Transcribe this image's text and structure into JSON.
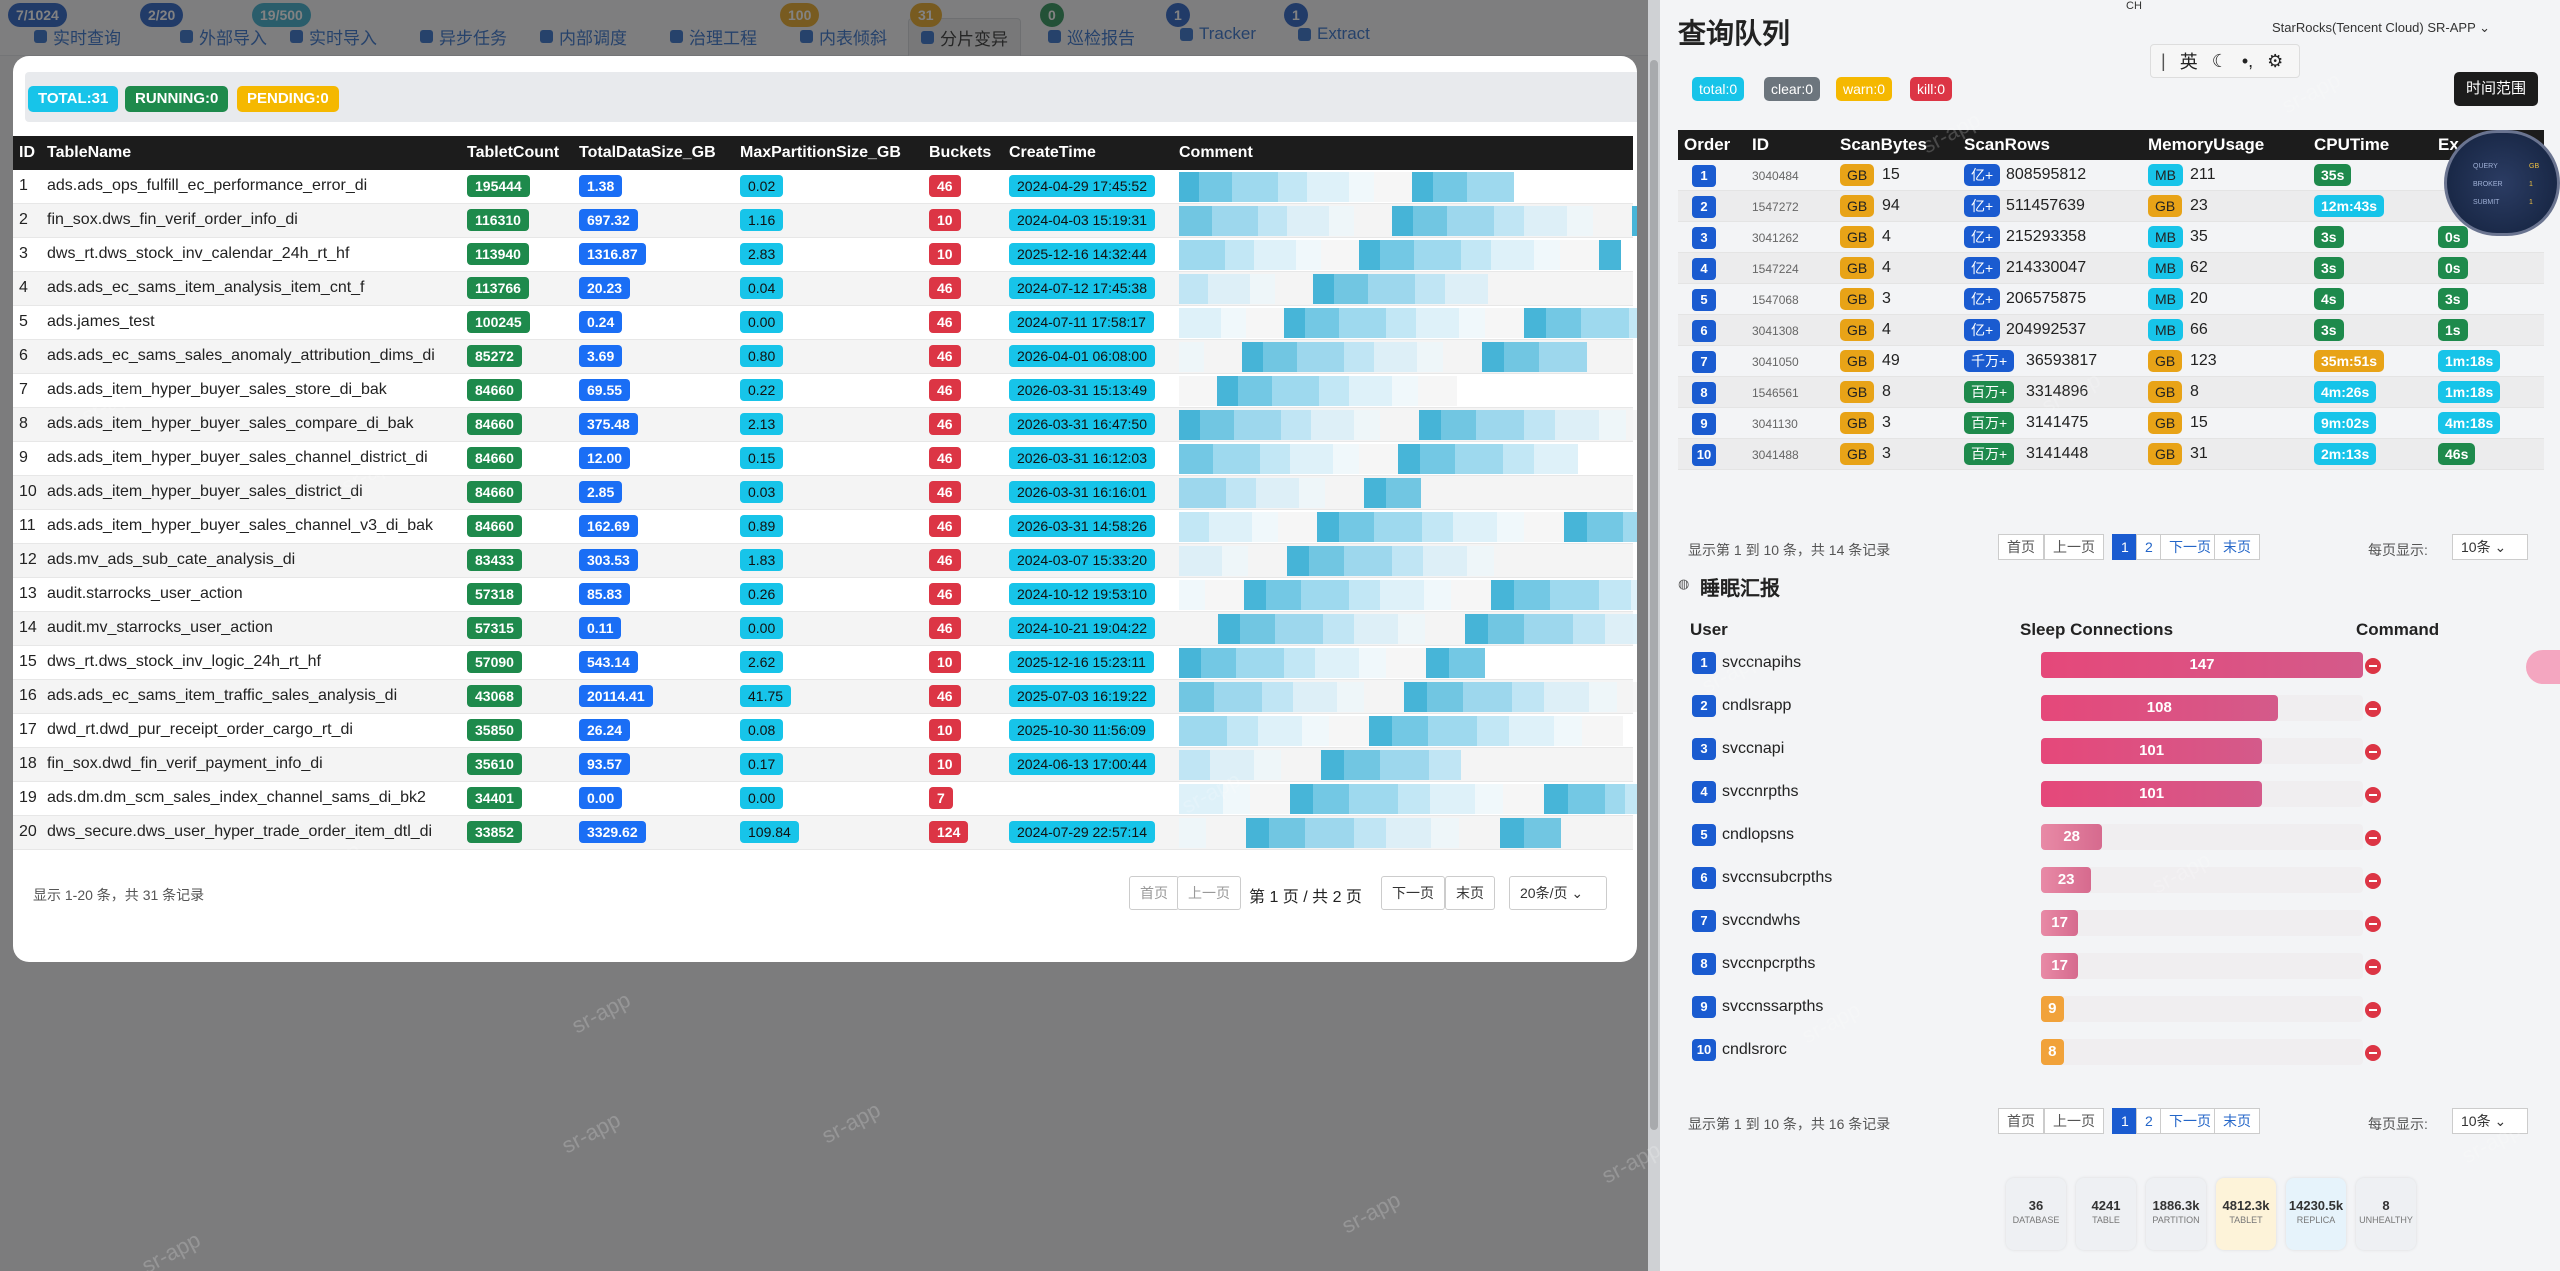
{
  "nav": {
    "items": [
      {
        "label": "实时查询",
        "badge": "7/1024",
        "badge_color": "#1a56c2"
      },
      {
        "label": "外部导入",
        "badge": "2/20",
        "badge_color": "#1a56c2"
      },
      {
        "label": "实时导入",
        "badge": "19/500",
        "badge_color": "#2fa6c9"
      },
      {
        "label": "异步任务",
        "badge": "",
        "badge_color": ""
      },
      {
        "label": "内部调度",
        "badge": "",
        "badge_color": ""
      },
      {
        "label": "治理工程",
        "badge": "",
        "badge_color": ""
      },
      {
        "label": "内表倾斜",
        "badge": "100",
        "badge_color": "#e8a317"
      },
      {
        "label": "分片变异",
        "badge": "31",
        "badge_color": "#e8a317"
      },
      {
        "label": "巡检报告",
        "badge": "0",
        "badge_color": "#1e8a4c"
      },
      {
        "label": "Tracker",
        "badge": "1",
        "badge_color": "#1a56c2"
      },
      {
        "label": "Extract",
        "badge": "1",
        "badge_color": "#1a56c2"
      }
    ]
  },
  "watermark": "sr-app",
  "modal": {
    "summary": {
      "total": "TOTAL:31",
      "running": "RUNNING:0",
      "pending": "PENDING:0"
    },
    "columns": [
      "ID",
      "TableName",
      "TabletCount",
      "TotalDataSize_GB",
      "MaxPartitionSize_GB",
      "Buckets",
      "CreateTime",
      "Comment"
    ],
    "rows": [
      {
        "id": "1",
        "name": "ads.ads_ops_fulfill_ec_performance_error_di",
        "tablets": "195444",
        "size": "1.38",
        "maxp": "0.02",
        "buckets": "46",
        "ctime": "2024-04-29 17:45:52"
      },
      {
        "id": "2",
        "name": "fin_sox.dws_fin_verif_order_info_di",
        "tablets": "116310",
        "size": "697.32",
        "maxp": "1.16",
        "buckets": "10",
        "ctime": "2024-04-03 15:19:31"
      },
      {
        "id": "3",
        "name": "dws_rt.dws_stock_inv_calendar_24h_rt_hf",
        "tablets": "113940",
        "size": "1316.87",
        "maxp": "2.83",
        "buckets": "10",
        "ctime": "2025-12-16 14:32:44"
      },
      {
        "id": "4",
        "name": "ads.ads_ec_sams_item_analysis_item_cnt_f",
        "tablets": "113766",
        "size": "20.23",
        "maxp": "0.04",
        "buckets": "46",
        "ctime": "2024-07-12 17:45:38"
      },
      {
        "id": "5",
        "name": "ads.james_test",
        "tablets": "100245",
        "size": "0.24",
        "maxp": "0.00",
        "buckets": "46",
        "ctime": "2024-07-11 17:58:17"
      },
      {
        "id": "6",
        "name": "ads.ads_ec_sams_sales_anomaly_attribution_dims_di",
        "tablets": "85272",
        "size": "3.69",
        "maxp": "0.80",
        "buckets": "46",
        "ctime": "2026-04-01 06:08:00"
      },
      {
        "id": "7",
        "name": "ads.ads_item_hyper_buyer_sales_store_di_bak",
        "tablets": "84660",
        "size": "69.55",
        "maxp": "0.22",
        "buckets": "46",
        "ctime": "2026-03-31 15:13:49"
      },
      {
        "id": "8",
        "name": "ads.ads_item_hyper_buyer_sales_compare_di_bak",
        "tablets": "84660",
        "size": "375.48",
        "maxp": "2.13",
        "buckets": "46",
        "ctime": "2026-03-31 16:47:50"
      },
      {
        "id": "9",
        "name": "ads.ads_item_hyper_buyer_sales_channel_district_di",
        "tablets": "84660",
        "size": "12.00",
        "maxp": "0.15",
        "buckets": "46",
        "ctime": "2026-03-31 16:12:03"
      },
      {
        "id": "10",
        "name": "ads.ads_item_hyper_buyer_sales_district_di",
        "tablets": "84660",
        "size": "2.85",
        "maxp": "0.03",
        "buckets": "46",
        "ctime": "2026-03-31 16:16:01"
      },
      {
        "id": "11",
        "name": "ads.ads_item_hyper_buyer_sales_channel_v3_di_bak",
        "tablets": "84660",
        "size": "162.69",
        "maxp": "0.89",
        "buckets": "46",
        "ctime": "2026-03-31 14:58:26"
      },
      {
        "id": "12",
        "name": "ads.mv_ads_sub_cate_analysis_di",
        "tablets": "83433",
        "size": "303.53",
        "maxp": "1.83",
        "buckets": "46",
        "ctime": "2024-03-07 15:33:20"
      },
      {
        "id": "13",
        "name": "audit.starrocks_user_action",
        "tablets": "57318",
        "size": "85.83",
        "maxp": "0.26",
        "buckets": "46",
        "ctime": "2024-10-12 19:53:10"
      },
      {
        "id": "14",
        "name": "audit.mv_starrocks_user_action",
        "tablets": "57315",
        "size": "0.11",
        "maxp": "0.00",
        "buckets": "46",
        "ctime": "2024-10-21 19:04:22"
      },
      {
        "id": "15",
        "name": "dws_rt.dws_stock_inv_logic_24h_rt_hf",
        "tablets": "57090",
        "size": "543.14",
        "maxp": "2.62",
        "buckets": "10",
        "ctime": "2025-12-16 15:23:11"
      },
      {
        "id": "16",
        "name": "ads.ads_ec_sams_item_traffic_sales_analysis_di",
        "tablets": "43068",
        "size": "20114.41",
        "maxp": "41.75",
        "buckets": "46",
        "ctime": "2025-07-03 16:19:22"
      },
      {
        "id": "17",
        "name": "dwd_rt.dwd_pur_receipt_order_cargo_rt_di",
        "tablets": "35850",
        "size": "26.24",
        "maxp": "0.08",
        "buckets": "10",
        "ctime": "2025-10-30 11:56:09"
      },
      {
        "id": "18",
        "name": "fin_sox.dwd_fin_verif_payment_info_di",
        "tablets": "35610",
        "size": "93.57",
        "maxp": "0.17",
        "buckets": "10",
        "ctime": "2024-06-13 17:00:44"
      },
      {
        "id": "19",
        "name": "ads.dm.dm_scm_sales_index_channel_sams_di_bk2",
        "tablets": "34401",
        "size": "0.00",
        "maxp": "0.00",
        "buckets": "7",
        "ctime": ""
      },
      {
        "id": "20",
        "name": "dws_secure.dws_user_hyper_trade_order_item_dtl_di",
        "tablets": "33852",
        "size": "3329.62",
        "maxp": "109.84",
        "buckets": "124",
        "ctime": "2024-07-29 22:57:14"
      }
    ],
    "pagination": {
      "info": "显示 1-20 条，共 31 条记录",
      "first": "首页",
      "prev": "上一页",
      "page": "第 1 页 / 共 2 页",
      "next": "下一页",
      "last": "末页",
      "size": "20条/页"
    }
  },
  "right": {
    "title": "查询队列",
    "cluster": "StarRocks(Tencent Cloud) SR-APP",
    "ime_label": "英",
    "ime_ch": "CH",
    "time_range": "时间范围",
    "badges": {
      "total": "total:0",
      "clear": "clear:0",
      "warn": "warn:0",
      "kill": "kill:0"
    },
    "queue_columns": [
      "Order",
      "ID",
      "ScanBytes",
      "ScanRows",
      "MemoryUsage",
      "CPUTime",
      "Ex"
    ],
    "queue": [
      {
        "order": "1",
        "id": "3040484",
        "bu": "GB",
        "b": "15",
        "ru": "亿+",
        "r": "808595812",
        "mu": "MB",
        "m": "211",
        "cpu": "35s",
        "cpu_color": "#1e8a4c",
        "ex": ""
      },
      {
        "order": "2",
        "id": "1547272",
        "bu": "GB",
        "b": "94",
        "ru": "亿+",
        "r": "511457639",
        "mu": "GB",
        "m": "23",
        "cpu": "12m:43s",
        "cpu_color": "#17c4e9",
        "ex": ""
      },
      {
        "order": "3",
        "id": "3041262",
        "bu": "GB",
        "b": "4",
        "ru": "亿+",
        "r": "215293358",
        "mu": "MB",
        "m": "35",
        "cpu": "3s",
        "cpu_color": "#1e8a4c",
        "ex": "0s"
      },
      {
        "order": "4",
        "id": "1547224",
        "bu": "GB",
        "b": "4",
        "ru": "亿+",
        "r": "214330047",
        "mu": "MB",
        "m": "62",
        "cpu": "3s",
        "cpu_color": "#1e8a4c",
        "ex": "0s"
      },
      {
        "order": "5",
        "id": "1547068",
        "bu": "GB",
        "b": "3",
        "ru": "亿+",
        "r": "206575875",
        "mu": "MB",
        "m": "20",
        "cpu": "4s",
        "cpu_color": "#1e8a4c",
        "ex": "3s"
      },
      {
        "order": "6",
        "id": "3041308",
        "bu": "GB",
        "b": "4",
        "ru": "亿+",
        "r": "204992537",
        "mu": "MB",
        "m": "66",
        "cpu": "3s",
        "cpu_color": "#1e8a4c",
        "ex": "1s"
      },
      {
        "order": "7",
        "id": "3041050",
        "bu": "GB",
        "b": "49",
        "ru": "千万+",
        "r": "36593817",
        "mu": "GB",
        "m": "123",
        "cpu": "35m:51s",
        "cpu_color": "#e8a317",
        "ex": "1m:18s"
      },
      {
        "order": "8",
        "id": "1546561",
        "bu": "GB",
        "b": "8",
        "ru": "百万+",
        "r": "3314896",
        "mu": "GB",
        "m": "8",
        "cpu": "4m:26s",
        "cpu_color": "#17c4e9",
        "ex": "1m:18s"
      },
      {
        "order": "9",
        "id": "3041130",
        "bu": "GB",
        "b": "3",
        "ru": "百万+",
        "r": "3141475",
        "mu": "GB",
        "m": "15",
        "cpu": "9m:02s",
        "cpu_color": "#17c4e9",
        "ex": "4m:18s"
      },
      {
        "order": "10",
        "id": "3041488",
        "bu": "GB",
        "b": "3",
        "ru": "百万+",
        "r": "3141448",
        "mu": "GB",
        "m": "31",
        "cpu": "2m:13s",
        "cpu_color": "#17c4e9",
        "ex": "46s"
      }
    ],
    "queue_pager": {
      "info": "显示第 1 到 10 条，共 14 条记录",
      "first": "首页",
      "prev": "上一页",
      "p1": "1",
      "p2": "2",
      "next": "下一页",
      "last": "末页",
      "per_label": "每页显示:",
      "per": "10条"
    },
    "sleep_title": "睡眠汇报",
    "sleep_columns": [
      "User",
      "Sleep Connections",
      "Command"
    ],
    "sleep_max": 147,
    "sleep": [
      {
        "n": "1",
        "user": "svccnapihs",
        "count": 147
      },
      {
        "n": "2",
        "user": "cndlsrapp",
        "count": 108
      },
      {
        "n": "3",
        "user": "svccnapi",
        "count": 101
      },
      {
        "n": "4",
        "user": "svccnrpths",
        "count": 101
      },
      {
        "n": "5",
        "user": "cndlopsns",
        "count": 28
      },
      {
        "n": "6",
        "user": "svccnsubcrpths",
        "count": 23
      },
      {
        "n": "7",
        "user": "svccndwhs",
        "count": 17
      },
      {
        "n": "8",
        "user": "svccnpcrpths",
        "count": 17
      },
      {
        "n": "9",
        "user": "svccnssarpths",
        "count": 9
      },
      {
        "n": "10",
        "user": "cndlsrorc",
        "count": 8
      }
    ],
    "sleep_pager": {
      "info": "显示第 1 到 10 条，共 16 条记录",
      "first": "首页",
      "prev": "上一页",
      "p1": "1",
      "p2": "2",
      "next": "下一页",
      "last": "末页",
      "per_label": "每页显示:",
      "per": "10条"
    },
    "stats": [
      {
        "value": "36",
        "label": "DATABASE"
      },
      {
        "value": "4241",
        "label": "TABLE"
      },
      {
        "value": "1886.3k",
        "label": "PARTITION"
      },
      {
        "value": "4812.3k",
        "label": "TABLET"
      },
      {
        "value": "14230.5k",
        "label": "REPLICA"
      },
      {
        "value": "8",
        "label": "UNHEALTHY"
      }
    ],
    "fab_lines": [
      "QUERY",
      "BROKER",
      "SUBMIT"
    ],
    "fab_values": [
      "GB",
      "1",
      "1"
    ]
  }
}
